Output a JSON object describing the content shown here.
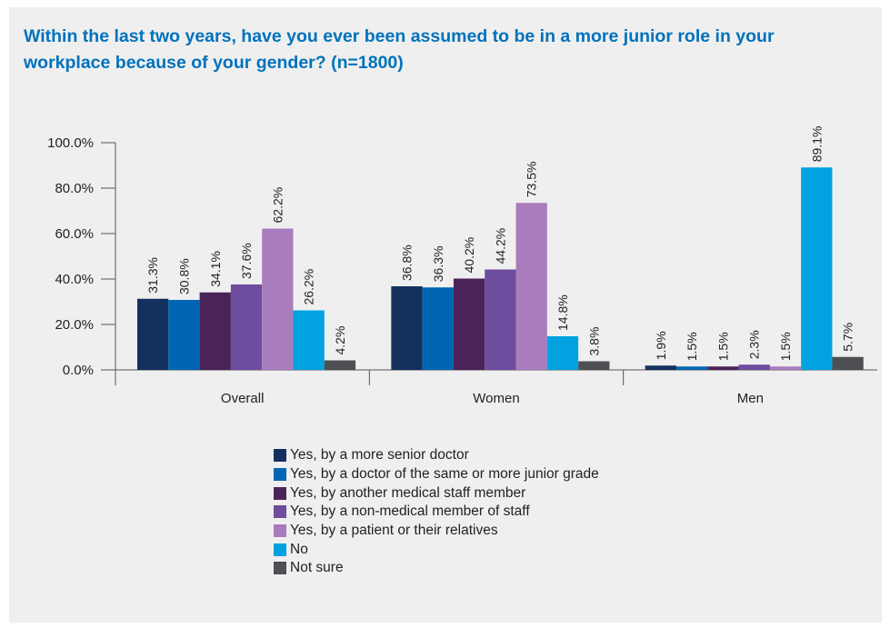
{
  "title": "Within the last two years, have you ever been assumed to be in a more junior role in your workplace because of your gender? (n=1800)",
  "chart_data": {
    "type": "bar",
    "title": "Within the last two years, have you ever been assumed to be in a more junior role in your workplace because of your gender? (n=1800)",
    "xlabel": "",
    "ylabel": "",
    "categories": [
      "Overall",
      "Women",
      "Men"
    ],
    "ylim": [
      0,
      100
    ],
    "yticks": [
      "0.0%",
      "20.0%",
      "40.0%",
      "60.0%",
      "80.0%",
      "100.0%"
    ],
    "ytick_values": [
      0,
      20,
      40,
      60,
      80,
      100
    ],
    "grid": false,
    "legend_position": "bottom",
    "series": [
      {
        "name": "Yes, by a more senior doctor",
        "color": "#14305f",
        "values": [
          31.3,
          36.8,
          1.9
        ],
        "labels": [
          "31.3%",
          "36.8%",
          "1.9%"
        ]
      },
      {
        "name": "Yes, by a doctor of the same or more junior grade",
        "color": "#0066b3",
        "values": [
          30.8,
          36.3,
          1.5
        ],
        "labels": [
          "30.8%",
          "36.3%",
          "1.5%"
        ]
      },
      {
        "name": "Yes, by another medical staff member",
        "color": "#4a2459",
        "values": [
          34.1,
          40.2,
          1.5
        ],
        "labels": [
          "34.1%",
          "40.2%",
          "1.5%"
        ]
      },
      {
        "name": "Yes, by a non-medical member of staff",
        "color": "#6e4c9e",
        "values": [
          37.6,
          44.2,
          2.3
        ],
        "labels": [
          "37.6%",
          "44.2%",
          "2.3%"
        ]
      },
      {
        "name": "Yes, by a patient or their relatives",
        "color": "#a97cbd",
        "values": [
          62.2,
          73.5,
          1.5
        ],
        "labels": [
          "62.2%",
          "73.5%",
          "1.5%"
        ]
      },
      {
        "name": "No",
        "color": "#00a3e0",
        "values": [
          26.2,
          14.8,
          89.1
        ],
        "labels": [
          "26.2%",
          "14.8%",
          "89.1%"
        ]
      },
      {
        "name": "Not sure",
        "color": "#4d4f53",
        "values": [
          4.2,
          3.8,
          5.7
        ],
        "labels": [
          "4.2%",
          "3.8%",
          "5.7%"
        ]
      }
    ]
  }
}
